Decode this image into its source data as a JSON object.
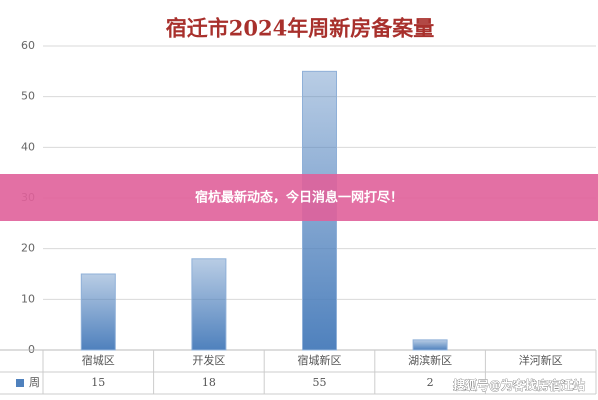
{
  "chart_data": {
    "type": "bar",
    "title": "宿迁市2024年周新房备案量",
    "categories": [
      "宿城区",
      "开发区",
      "宿城新区",
      "湖滨新区",
      "洋河新区"
    ],
    "series": [
      {
        "name": "周",
        "color": "#4f81bd",
        "values": [
          15,
          18,
          55,
          2,
          null
        ]
      }
    ],
    "ylim": [
      0,
      60
    ],
    "yticks": [
      0,
      10,
      20,
      30,
      40,
      50,
      60
    ],
    "grid": true
  },
  "overlay": {
    "banner": "宿杭最新动态，今日消息一网打尽！",
    "watermark": "搜狐号@为客找房宿迁站"
  }
}
